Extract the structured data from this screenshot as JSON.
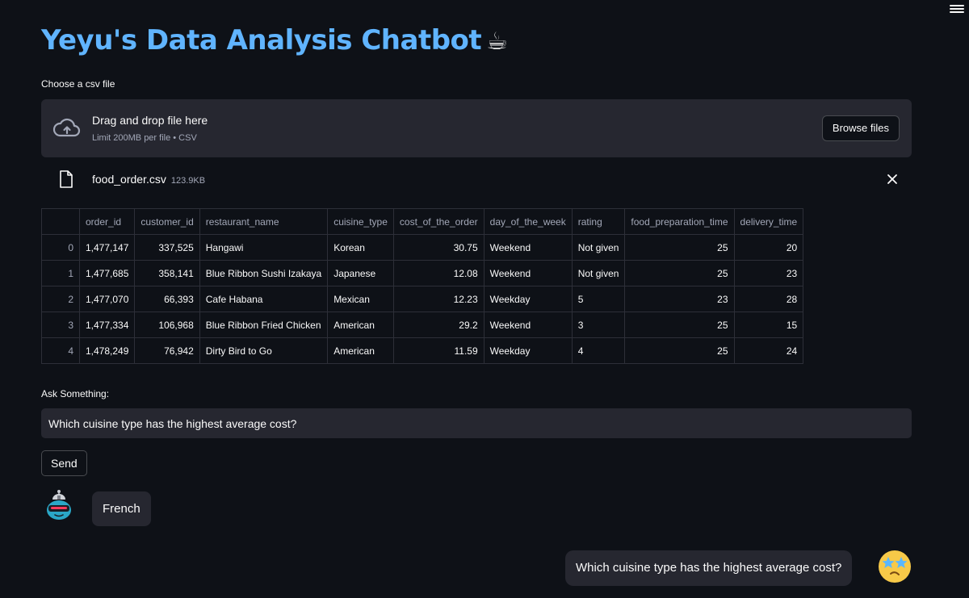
{
  "app": {
    "title": "Yeyu's Data Analysis Chatbot",
    "title_emoji": "☕"
  },
  "uploader": {
    "label": "Choose a csv file",
    "drop_title": "Drag and drop file here",
    "drop_subtitle": "Limit 200MB per file • CSV",
    "browse_label": "Browse files",
    "icon": "cloud-upload-icon"
  },
  "uploaded_file": {
    "name": "food_order.csv",
    "size": "123.9KB",
    "icon": "file-icon"
  },
  "table": {
    "columns": [
      "",
      "order_id",
      "customer_id",
      "restaurant_name",
      "cuisine_type",
      "cost_of_the_order",
      "day_of_the_week",
      "rating",
      "food_preparation_time",
      "delivery_time"
    ],
    "rows": [
      [
        "0",
        "1,477,147",
        "337,525",
        "Hangawi",
        "Korean",
        "30.75",
        "Weekend",
        "Not given",
        "25",
        "20"
      ],
      [
        "1",
        "1,477,685",
        "358,141",
        "Blue Ribbon Sushi Izakaya",
        "Japanese",
        "12.08",
        "Weekend",
        "Not given",
        "25",
        "23"
      ],
      [
        "2",
        "1,477,070",
        "66,393",
        "Cafe Habana",
        "Mexican",
        "12.23",
        "Weekday",
        "5",
        "23",
        "28"
      ],
      [
        "3",
        "1,477,334",
        "106,968",
        "Blue Ribbon Fried Chicken",
        "American",
        "29.2",
        "Weekend",
        "3",
        "25",
        "15"
      ],
      [
        "4",
        "1,478,249",
        "76,942",
        "Dirty Bird to Go",
        "American",
        "11.59",
        "Weekday",
        "4",
        "25",
        "24"
      ]
    ]
  },
  "ask": {
    "label": "Ask Something:",
    "value": "Which cuisine type has the highest average cost?",
    "send_label": "Send"
  },
  "chat": {
    "bot_reply": "French",
    "user_message": "Which cuisine type has the highest average cost?"
  },
  "colors": {
    "background": "#0e1117",
    "surface": "#262730",
    "title": "#60b4ff"
  }
}
